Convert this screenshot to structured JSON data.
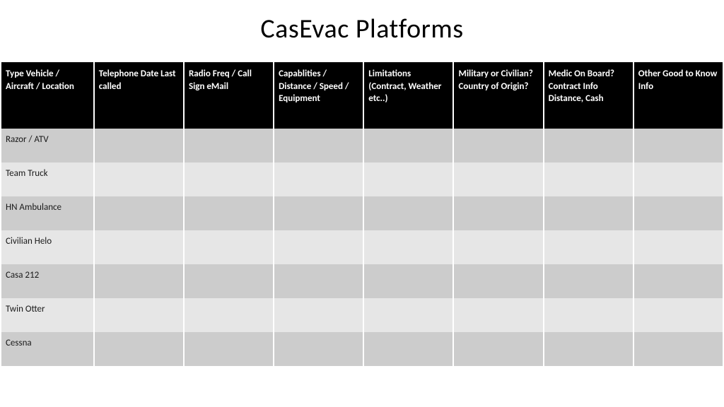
{
  "title": "CasEvac Platforms",
  "table": {
    "type": "table",
    "header_bg": "#000000",
    "header_fg": "#ffffff",
    "row_colors": [
      "#cccccc",
      "#e6e6e6"
    ],
    "columns": [
      "Type Vehicle / Aircraft / Location",
      "Telephone Date Last called",
      "Radio Freq / Call Sign eMail",
      "Capablities / Distance / Speed / Equipment",
      "Limitations (Contract, Weather etc..)",
      "Military or Civilian? Country of Origin?",
      "Medic On Board? Contract Info Distance, Cash",
      "Other Good to Know Info"
    ],
    "rows": [
      [
        "Razor / ATV",
        "",
        "",
        "",
        "",
        "",
        "",
        ""
      ],
      [
        "Team Truck",
        "",
        "",
        "",
        "",
        "",
        "",
        ""
      ],
      [
        "HN Ambulance",
        "",
        "",
        "",
        "",
        "",
        "",
        ""
      ],
      [
        "Civilian Helo",
        "",
        "",
        "",
        "",
        "",
        "",
        ""
      ],
      [
        "Casa 212",
        "",
        "",
        "",
        "",
        "",
        "",
        ""
      ],
      [
        "Twin Otter",
        "",
        "",
        "",
        "",
        "",
        "",
        ""
      ],
      [
        "Cessna",
        "",
        "",
        "",
        "",
        "",
        "",
        ""
      ]
    ]
  }
}
